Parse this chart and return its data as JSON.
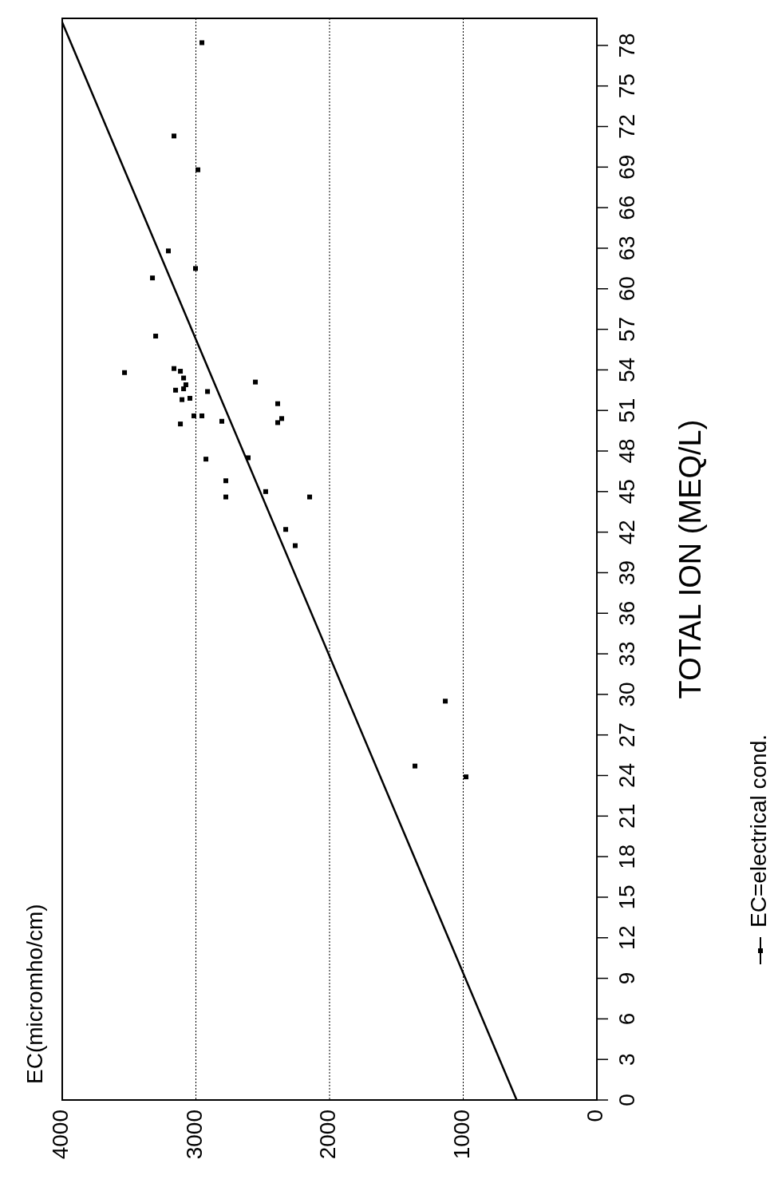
{
  "chart_data": {
    "type": "scatter",
    "annotations": [
      "EC(micromho/cm)"
    ],
    "ylabel": "TOTAL ION (MEQ/L)",
    "xlim": [
      4000,
      0
    ],
    "xticks": [
      4000,
      3000,
      2000,
      1000,
      0
    ],
    "ylim": [
      0,
      80
    ],
    "yticks": [
      0,
      3,
      6,
      9,
      12,
      15,
      18,
      21,
      24,
      27,
      30,
      33,
      36,
      39,
      42,
      45,
      48,
      51,
      54,
      57,
      60,
      63,
      66,
      69,
      72,
      75,
      78
    ],
    "grid": "x",
    "legend": "right",
    "marker": "square",
    "series": [
      {
        "name": "EC=electrical cond.",
        "color": "#000000",
        "values": [
          78.2,
          71.3,
          68.8,
          62.8,
          61.5,
          60.8,
          56.5,
          53.8,
          54.1,
          53.9,
          53.4,
          52.9,
          52.5,
          52.6,
          52.4,
          53.1,
          51.8,
          51.9,
          51.5,
          50.1,
          50.4,
          50.6,
          50.6,
          50.0,
          50.2,
          47.4,
          47.5,
          45.8,
          44.6,
          45.0,
          44.6,
          42.2,
          41.0,
          29.5,
          24.7,
          23.9
        ],
        "x": [
          2955,
          3164,
          2985,
          3206,
          3003,
          3325,
          3301,
          3534,
          3164,
          3116,
          3092,
          3075,
          3152,
          3092,
          2913,
          2555,
          3104,
          3045,
          2388,
          2388,
          2358,
          3015,
          2955,
          3116,
          2806,
          2925,
          2609,
          2776,
          2776,
          2478,
          2149,
          2328,
          2257,
          1134,
          1361,
          979
        ]
      },
      {
        "type": "line",
        "color": "#000000",
        "marker": "none",
        "x": [
          600,
          4000
        ],
        "values": [
          0,
          79.7
        ]
      }
    ]
  }
}
